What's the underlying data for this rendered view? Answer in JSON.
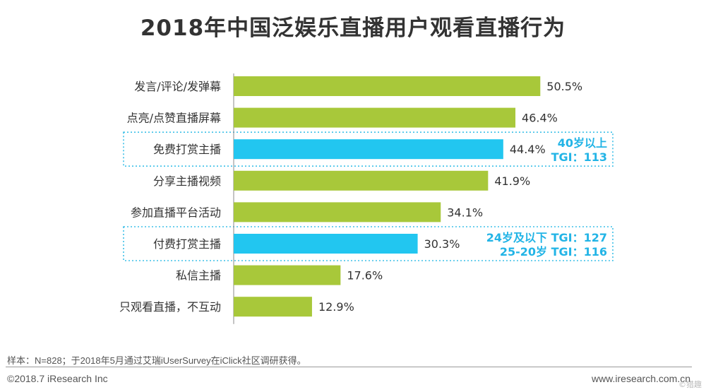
{
  "title": "2018年中国泛娱乐直播用户观看直播行为",
  "chart_data": {
    "type": "bar",
    "orientation": "horizontal",
    "categories": [
      "发言/评论/发弹幕",
      "点亮/点赞直播屏幕",
      "免费打赏主播",
      "分享主播视频",
      "参加直播平台活动",
      "付费打赏主播",
      "私信主播",
      "只观看直播，不互动"
    ],
    "values": [
      50.5,
      46.4,
      44.4,
      41.9,
      34.1,
      30.3,
      17.6,
      12.9
    ],
    "value_labels": [
      "50.5%",
      "46.4%",
      "44.4%",
      "41.9%",
      "34.1%",
      "30.3%",
      "17.6%",
      "12.9%"
    ],
    "highlighted": [
      false,
      false,
      true,
      false,
      false,
      true,
      false,
      false
    ],
    "xlim": [
      0,
      100
    ],
    "grid": false,
    "annotations": [
      {
        "category": "免费打赏主播",
        "lines": [
          "40岁以上",
          "TGI：113"
        ]
      },
      {
        "category": "付费打赏主播",
        "lines": [
          "24岁及以下 TGI：127",
          "25-20岁 TGI：116"
        ]
      }
    ],
    "colors": {
      "bar": "#a8c83a",
      "highlight": "#22c6f0",
      "annotation_text": "#22b4e6",
      "box": "#3ec0e8"
    }
  },
  "footer": {
    "sample_note": "样本：N=828；于2018年5月通过艾瑞iUserSurvey在iClick社区调研获得。",
    "copyright": "©2018.7 iResearch Inc",
    "website": "www.iresearch.com.cn",
    "watermark": "©猎趣"
  }
}
